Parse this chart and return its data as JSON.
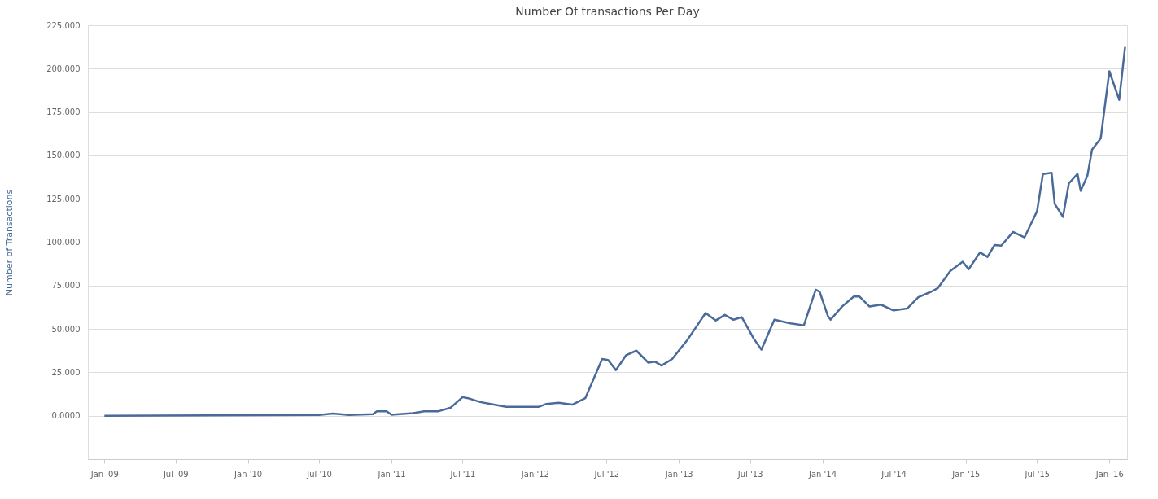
{
  "chart_data": {
    "type": "line",
    "title": "Number Of transactions Per Day",
    "ylabel": "Number of Transactions",
    "x": [
      "2009-01-01",
      "2010-07-01",
      "2010-08-05",
      "2010-09-15",
      "2010-11-15",
      "2010-11-25",
      "2010-12-20",
      "2011-01-01",
      "2011-02-25",
      "2011-03-25",
      "2011-05-01",
      "2011-06-01",
      "2011-07-01",
      "2011-07-15",
      "2011-08-15",
      "2011-09-10",
      "2011-10-20",
      "2011-12-05",
      "2012-01-10",
      "2012-01-30",
      "2012-03-01",
      "2012-04-05",
      "2012-05-08",
      "2012-06-20",
      "2012-07-05",
      "2012-07-25",
      "2012-08-20",
      "2012-09-15",
      "2012-10-15",
      "2012-11-01",
      "2012-11-18",
      "2012-12-15",
      "2013-01-22",
      "2013-02-17",
      "2013-03-10",
      "2013-04-05",
      "2013-04-28",
      "2013-05-20",
      "2013-06-10",
      "2013-07-10",
      "2013-07-30",
      "2013-09-01",
      "2013-10-12",
      "2013-11-15",
      "2013-12-15",
      "2013-12-25",
      "2014-01-15",
      "2014-01-22",
      "2014-02-20",
      "2014-03-22",
      "2014-04-05",
      "2014-05-01",
      "2014-05-30",
      "2014-07-01",
      "2014-08-05",
      "2014-09-02",
      "2014-10-05",
      "2014-10-22",
      "2014-11-22",
      "2014-12-24",
      "2015-01-08",
      "2015-02-06",
      "2015-02-25",
      "2015-03-15",
      "2015-04-01",
      "2015-05-01",
      "2015-05-30",
      "2015-07-01",
      "2015-07-16",
      "2015-08-07",
      "2015-08-15",
      "2015-09-05",
      "2015-09-20",
      "2015-10-12",
      "2015-10-20",
      "2015-11-06",
      "2015-11-18",
      "2015-12-10",
      "2016-01-01",
      "2016-01-26",
      "2016-02-10"
    ],
    "series": [
      {
        "color": "#4a6a9a",
        "values": [
          0,
          400,
          1300,
          400,
          900,
          2600,
          2600,
          600,
          1500,
          2600,
          2600,
          4700,
          10700,
          10100,
          7900,
          6800,
          5100,
          5100,
          5100,
          6800,
          7500,
          6400,
          10100,
          32700,
          32100,
          26300,
          34900,
          37500,
          30600,
          31200,
          28900,
          32700,
          43500,
          52100,
          59200,
          54900,
          58100,
          55300,
          56800,
          44600,
          38100,
          55300,
          53200,
          52100,
          72600,
          71500,
          57500,
          55300,
          62900,
          68700,
          68700,
          62900,
          64000,
          60700,
          61800,
          68300,
          71500,
          73600,
          83300,
          88700,
          84400,
          94100,
          91500,
          98400,
          98000,
          105900,
          102700,
          117800,
          139300,
          140000,
          122100,
          114600,
          133900,
          139300,
          129600,
          138200,
          153300,
          159800,
          198500,
          182000,
          212500
        ]
      }
    ],
    "xlim": [
      "2008-11-20",
      "2016-02-15"
    ],
    "xticks": [
      {
        "value": "2009-01-01",
        "label": "Jan '09"
      },
      {
        "value": "2009-07-01",
        "label": "Jul '09"
      },
      {
        "value": "2010-01-01",
        "label": "Jan '10"
      },
      {
        "value": "2010-07-01",
        "label": "Jul '10"
      },
      {
        "value": "2011-01-01",
        "label": "Jan '11"
      },
      {
        "value": "2011-07-01",
        "label": "Jul '11"
      },
      {
        "value": "2012-01-01",
        "label": "Jan '12"
      },
      {
        "value": "2012-07-01",
        "label": "Jul '12"
      },
      {
        "value": "2013-01-01",
        "label": "Jan '13"
      },
      {
        "value": "2013-07-01",
        "label": "Jul '13"
      },
      {
        "value": "2014-01-01",
        "label": "Jan '14"
      },
      {
        "value": "2014-07-01",
        "label": "Jul '14"
      },
      {
        "value": "2015-01-01",
        "label": "Jan '15"
      },
      {
        "value": "2015-07-01",
        "label": "Jul '15"
      },
      {
        "value": "2016-01-01",
        "label": "Jan '16"
      }
    ],
    "ylim": [
      -25000,
      225000
    ],
    "yticks": [
      {
        "value": 0,
        "label": "0.0000"
      },
      {
        "value": 25000,
        "label": "25,000"
      },
      {
        "value": 50000,
        "label": "50,000"
      },
      {
        "value": 75000,
        "label": "75,000"
      },
      {
        "value": 100000,
        "label": "100,000"
      },
      {
        "value": 125000,
        "label": "125,000"
      },
      {
        "value": 150000,
        "label": "150,000"
      },
      {
        "value": 175000,
        "label": "175,000"
      },
      {
        "value": 200000,
        "label": "200,000"
      },
      {
        "value": 225000,
        "label": "225,000"
      }
    ],
    "grid": "y",
    "marker": "none",
    "line_style": "solid"
  }
}
